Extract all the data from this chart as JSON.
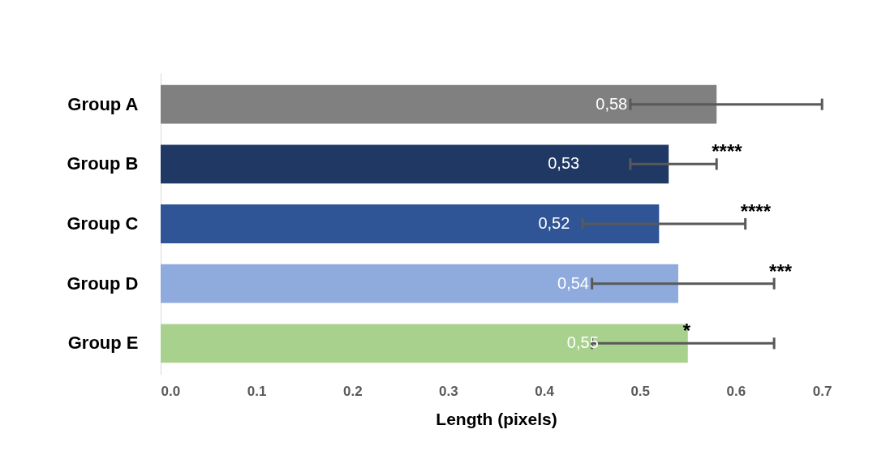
{
  "chart_data": {
    "type": "bar",
    "orientation": "horizontal",
    "xlabel": "Length (pixels)",
    "categories": [
      "Group A",
      "Group B",
      "Group C",
      "Group D",
      "Group E"
    ],
    "values": [
      0.58,
      0.53,
      0.52,
      0.54,
      0.55
    ],
    "colors": [
      "#808080",
      "#1f3864",
      "#2f5597",
      "#8faadc",
      "#a9d18e"
    ],
    "value_labels": [
      "0,58",
      "0,53",
      "0,52",
      "0,54",
      "0,55"
    ],
    "errors": [
      [
        0.49,
        0.69
      ],
      [
        0.49,
        0.58
      ],
      [
        0.44,
        0.61
      ],
      [
        0.45,
        0.64
      ],
      [
        0.45,
        0.64
      ]
    ],
    "xlim": [
      0,
      0.7
    ],
    "xticks": [
      {
        "value": 0,
        "label": "0.0"
      },
      0.1,
      0.2,
      0.3,
      0.4,
      0.5,
      0.6,
      0.7
    ],
    "annotations": [
      {
        "text": "****",
        "x": 0.58,
        "y": "Group B"
      },
      {
        "text": "****",
        "x": 0.61,
        "y": "Group C"
      },
      {
        "text": "***",
        "x": 0.64,
        "y": "Group D"
      },
      {
        "text": "*",
        "x": 0.55,
        "y": "Group E"
      }
    ],
    "grid": false,
    "legend": false
  }
}
